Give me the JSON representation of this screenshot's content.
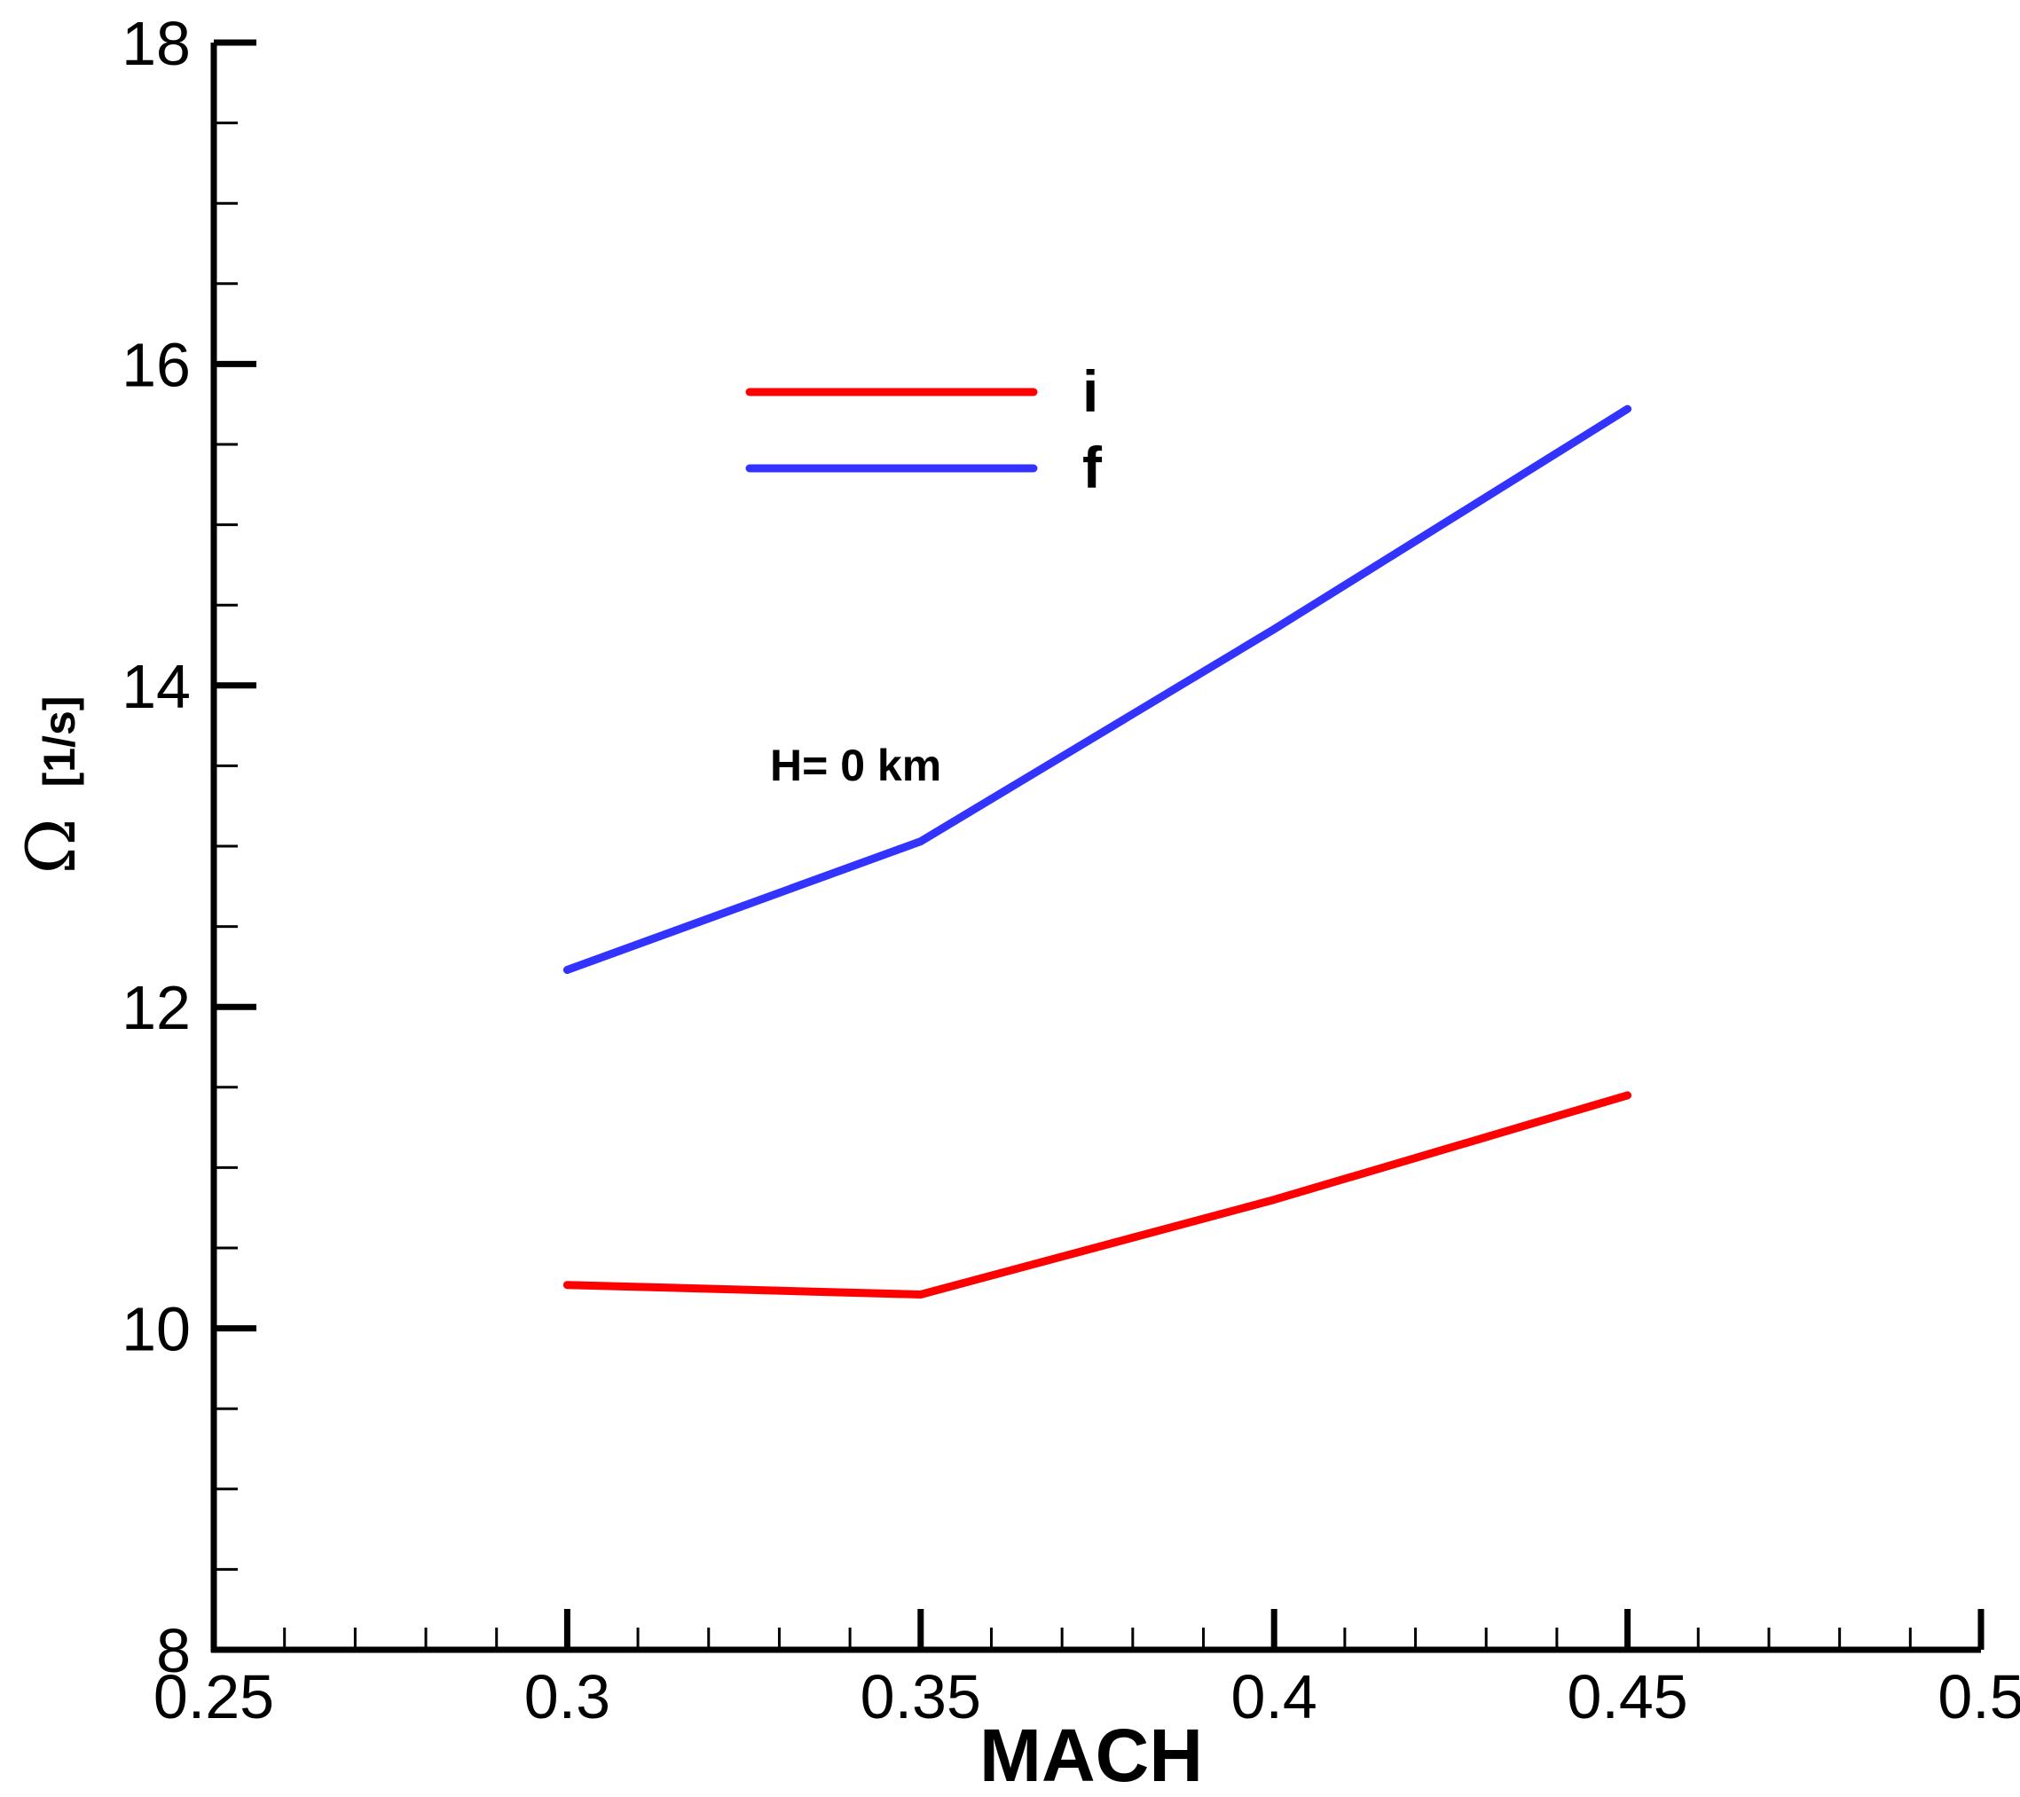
{
  "chart_data": {
    "type": "line",
    "xlabel": "MACH",
    "ylabel_symbol": "Ω",
    "ylabel_unit": "[1/s]",
    "xlim": [
      0.25,
      0.5
    ],
    "ylim": [
      8,
      18
    ],
    "x_ticks": [
      0.25,
      0.3,
      0.35,
      0.4,
      0.45,
      0.5
    ],
    "x_tick_labels": [
      "0.25",
      "0.3",
      "0.35",
      "0.4",
      "0.45",
      "0.5"
    ],
    "x_minor_step": 0.01,
    "y_ticks": [
      8,
      10,
      12,
      14,
      16,
      18
    ],
    "y_tick_labels": [
      "8",
      "10",
      "12",
      "14",
      "16",
      "18"
    ],
    "y_minor_step": 0.5,
    "grid": false,
    "legend_position": "top-center",
    "annotation": "H= 0 km",
    "series": [
      {
        "name": "i",
        "color": "#ff0000",
        "x": [
          0.3,
          0.35,
          0.4,
          0.45
        ],
        "y": [
          10.27,
          10.21,
          10.8,
          11.45
        ]
      },
      {
        "name": "f",
        "color": "#3333ff",
        "x": [
          0.3,
          0.35,
          0.4,
          0.45
        ],
        "y": [
          12.23,
          13.03,
          14.35,
          15.72
        ]
      }
    ]
  }
}
